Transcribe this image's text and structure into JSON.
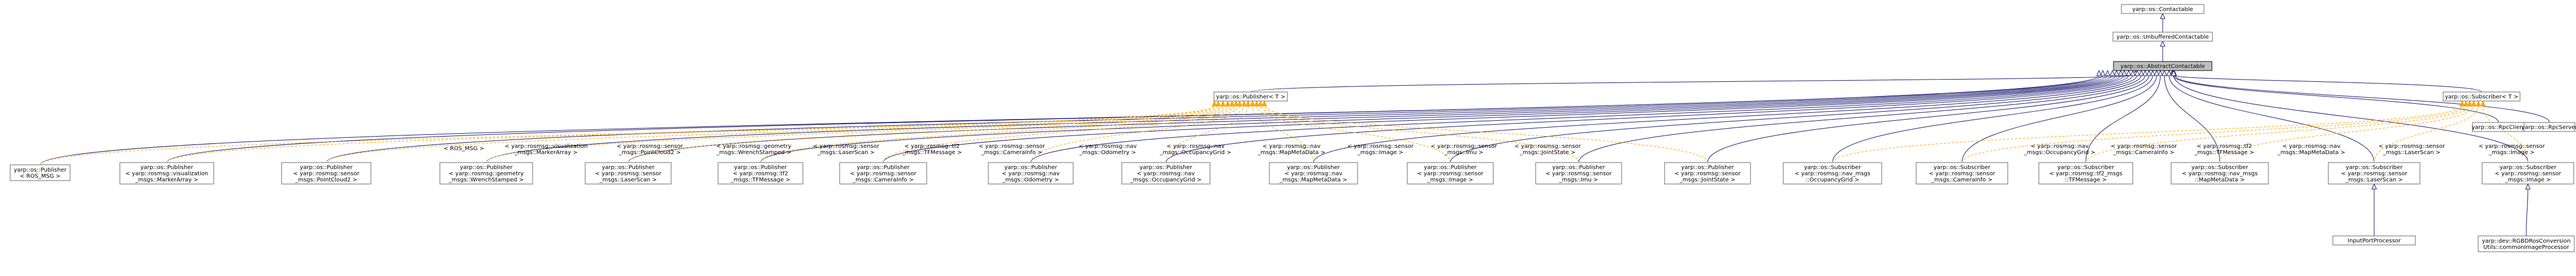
{
  "nodes": [
    {
      "id": "contactable",
      "lines": [
        "yarp::os::Contactable"
      ]
    },
    {
      "id": "unbuffered",
      "lines": [
        "yarp::os::UnbufferedContactable"
      ]
    },
    {
      "id": "abstract",
      "lines": [
        "yarp::os::AbstractContactable"
      ]
    },
    {
      "id": "publisher_t",
      "lines": [
        "yarp::os::Publisher< T >"
      ]
    },
    {
      "id": "subscriber_t",
      "lines": [
        "yarp::os::Subscriber< T >"
      ]
    },
    {
      "id": "rpcclient",
      "lines": [
        "yarp::os::RpcClient"
      ]
    },
    {
      "id": "rpcserver",
      "lines": [
        "yarp::os::RpcServer"
      ]
    },
    {
      "id": "pub_ros_msg",
      "lines": [
        "yarp::os::Publisher",
        "< ROS_MSG >"
      ]
    },
    {
      "id": "pub_marker",
      "lines": [
        "yarp::os::Publisher",
        "< yarp::rosmsg::visualization",
        "_msgs::MarkerArray >"
      ]
    },
    {
      "id": "pub_pointcloud",
      "lines": [
        "yarp::os::Publisher",
        "< yarp::rosmsg::sensor",
        "_msgs::PointCloud2 >"
      ]
    },
    {
      "id": "pub_wrench",
      "lines": [
        "yarp::os::Publisher",
        "< yarp::rosmsg::geometry",
        "_msgs::WrenchStamped >"
      ]
    },
    {
      "id": "pub_laserscan",
      "lines": [
        "yarp::os::Publisher",
        "< yarp::rosmsg::sensor",
        "_msgs::LaserScan >"
      ]
    },
    {
      "id": "pub_tf",
      "lines": [
        "yarp::os::Publisher",
        "< yarp::rosmsg::tf2",
        "_msgs::TFMessage >"
      ]
    },
    {
      "id": "pub_camerainfo",
      "lines": [
        "yarp::os::Publisher",
        "< yarp::rosmsg::sensor",
        "_msgs::CameraInfo >"
      ]
    },
    {
      "id": "pub_odometry",
      "lines": [
        "yarp::os::Publisher",
        "< yarp::rosmsg::nav",
        "_msgs::Odometry >"
      ]
    },
    {
      "id": "pub_occgrid",
      "lines": [
        "yarp::os::Publisher",
        "< yarp::rosmsg::nav",
        "_msgs::OccupancyGrid >"
      ]
    },
    {
      "id": "pub_mapmeta",
      "lines": [
        "yarp::os::Publisher",
        "< yarp::rosmsg::nav",
        "_msgs::MapMetaData >"
      ]
    },
    {
      "id": "pub_image",
      "lines": [
        "yarp::os::Publisher",
        "< yarp::rosmsg::sensor",
        "_msgs::Image >"
      ]
    },
    {
      "id": "pub_imu",
      "lines": [
        "yarp::os::Publisher",
        "< yarp::rosmsg::sensor",
        "_msgs::Imu >"
      ]
    },
    {
      "id": "pub_jointstate",
      "lines": [
        "yarp::os::Publisher",
        "< yarp::rosmsg::sensor",
        "_msgs::JointState >"
      ]
    },
    {
      "id": "sub_occgrid",
      "lines": [
        "yarp::os::Subscriber",
        "< yarp::rosmsg::nav_msgs",
        "::OccupancyGrid >"
      ]
    },
    {
      "id": "sub_camerainfo",
      "lines": [
        "yarp::os::Subscriber",
        "< yarp::rosmsg::sensor",
        "_msgs::CameraInfo >"
      ]
    },
    {
      "id": "sub_tf",
      "lines": [
        "yarp::os::Subscriber",
        "< yarp::rosmsg::tf2_msgs",
        "::TFMessage >"
      ]
    },
    {
      "id": "sub_mapmeta",
      "lines": [
        "yarp::os::Subscriber",
        "< yarp::rosmsg::nav_msgs",
        "::MapMetaData >"
      ]
    },
    {
      "id": "sub_laserscan",
      "lines": [
        "yarp::os::Subscriber",
        "< yarp::rosmsg::sensor",
        "_msgs::LaserScan >"
      ]
    },
    {
      "id": "sub_image",
      "lines": [
        "yarp::os::Subscriber",
        "< yarp::rosmsg::sensor",
        "_msgs::Image >"
      ]
    },
    {
      "id": "inputportproc",
      "lines": [
        "InputPortProcessor"
      ]
    },
    {
      "id": "rgbdros",
      "lines": [
        "yarp::dev::RGBDRosConversion",
        "Utils::commonImageProcessor"
      ]
    }
  ],
  "edges": [
    {
      "from": "unbuffered",
      "to": "contactable",
      "kind": "inherit",
      "label": []
    },
    {
      "from": "abstract",
      "to": "unbuffered",
      "kind": "inherit",
      "label": []
    },
    {
      "from": "publisher_t",
      "to": "abstract",
      "kind": "inherit",
      "label": []
    },
    {
      "from": "subscriber_t",
      "to": "abstract",
      "kind": "inherit",
      "label": []
    },
    {
      "from": "rpcclient",
      "to": "abstract",
      "kind": "inherit",
      "label": []
    },
    {
      "from": "rpcserver",
      "to": "abstract",
      "kind": "inherit",
      "label": []
    },
    {
      "from": "pub_ros_msg",
      "to": "abstract",
      "kind": "inherit",
      "label": []
    },
    {
      "from": "pub_marker",
      "to": "abstract",
      "kind": "inherit",
      "label": []
    },
    {
      "from": "pub_pointcloud",
      "to": "abstract",
      "kind": "inherit",
      "label": []
    },
    {
      "from": "pub_wrench",
      "to": "abstract",
      "kind": "inherit",
      "label": []
    },
    {
      "from": "pub_laserscan",
      "to": "abstract",
      "kind": "inherit",
      "label": []
    },
    {
      "from": "pub_tf",
      "to": "abstract",
      "kind": "inherit",
      "label": []
    },
    {
      "from": "pub_camerainfo",
      "to": "abstract",
      "kind": "inherit",
      "label": []
    },
    {
      "from": "pub_odometry",
      "to": "abstract",
      "kind": "inherit",
      "label": []
    },
    {
      "from": "pub_occgrid",
      "to": "abstract",
      "kind": "inherit",
      "label": []
    },
    {
      "from": "pub_mapmeta",
      "to": "abstract",
      "kind": "inherit",
      "label": []
    },
    {
      "from": "pub_image",
      "to": "abstract",
      "kind": "inherit",
      "label": []
    },
    {
      "from": "pub_imu",
      "to": "abstract",
      "kind": "inherit",
      "label": []
    },
    {
      "from": "pub_jointstate",
      "to": "abstract",
      "kind": "inherit",
      "label": []
    },
    {
      "from": "sub_occgrid",
      "to": "abstract",
      "kind": "inherit",
      "label": []
    },
    {
      "from": "sub_camerainfo",
      "to": "abstract",
      "kind": "inherit",
      "label": []
    },
    {
      "from": "sub_tf",
      "to": "abstract",
      "kind": "inherit",
      "label": []
    },
    {
      "from": "sub_mapmeta",
      "to": "abstract",
      "kind": "inherit",
      "label": []
    },
    {
      "from": "sub_laserscan",
      "to": "abstract",
      "kind": "inherit",
      "label": []
    },
    {
      "from": "sub_image",
      "to": "abstract",
      "kind": "inherit",
      "label": []
    },
    {
      "from": "pub_ros_msg",
      "to": "publisher_t",
      "kind": "template",
      "label": [
        "< ROS_MSG >"
      ]
    },
    {
      "from": "pub_marker",
      "to": "publisher_t",
      "kind": "template",
      "label": [
        "< yarp::rosmsg::visualization",
        "_msgs::MarkerArray >"
      ]
    },
    {
      "from": "pub_pointcloud",
      "to": "publisher_t",
      "kind": "template",
      "label": [
        "< yarp::rosmsg::sensor",
        "_msgs::PointCloud2 >"
      ]
    },
    {
      "from": "pub_wrench",
      "to": "publisher_t",
      "kind": "template",
      "label": [
        "< yarp::rosmsg::geometry",
        "_msgs::WrenchStamped >"
      ]
    },
    {
      "from": "pub_laserscan",
      "to": "publisher_t",
      "kind": "template",
      "label": [
        "< yarp::rosmsg::sensor",
        "_msgs::LaserScan >"
      ]
    },
    {
      "from": "pub_tf",
      "to": "publisher_t",
      "kind": "template",
      "label": [
        "< yarp::rosmsg::tf2",
        "_msgs::TFMessage >"
      ]
    },
    {
      "from": "pub_camerainfo",
      "to": "publisher_t",
      "kind": "template",
      "label": [
        "< yarp::rosmsg::sensor",
        "_msgs::CameraInfo >"
      ]
    },
    {
      "from": "pub_odometry",
      "to": "publisher_t",
      "kind": "template",
      "label": [
        "< yarp::rosmsg::nav",
        "_msgs::Odometry >"
      ]
    },
    {
      "from": "pub_occgrid",
      "to": "publisher_t",
      "kind": "template",
      "label": [
        "< yarp::rosmsg::nav",
        "_msgs::OccupancyGrid >"
      ]
    },
    {
      "from": "pub_mapmeta",
      "to": "publisher_t",
      "kind": "template",
      "label": [
        "< yarp::rosmsg::nav",
        "_msgs::MapMetaData >"
      ]
    },
    {
      "from": "pub_image",
      "to": "publisher_t",
      "kind": "template",
      "label": [
        "< yarp::rosmsg::sensor",
        "_msgs::Image >"
      ]
    },
    {
      "from": "pub_imu",
      "to": "publisher_t",
      "kind": "template",
      "label": [
        "< yarp::rosmsg::sensor",
        "_msgs::Imu >"
      ]
    },
    {
      "from": "pub_jointstate",
      "to": "publisher_t",
      "kind": "template",
      "label": [
        "< yarp::rosmsg::sensor",
        "_msgs::JointState >"
      ]
    },
    {
      "from": "sub_occgrid",
      "to": "subscriber_t",
      "kind": "template",
      "label": [
        "< yarp::rosmsg::nav",
        "_msgs::OccupancyGrid >"
      ]
    },
    {
      "from": "sub_camerainfo",
      "to": "subscriber_t",
      "kind": "template",
      "label": [
        "< yarp::rosmsg::sensor",
        "_msgs::CameraInfo >"
      ]
    },
    {
      "from": "sub_tf",
      "to": "subscriber_t",
      "kind": "template",
      "label": [
        "< yarp::rosmsg::tf2",
        "_msgs::TFMessage >"
      ]
    },
    {
      "from": "sub_mapmeta",
      "to": "subscriber_t",
      "kind": "template",
      "label": [
        "< yarp::rosmsg::nav",
        "_msgs::MapMetaData >"
      ]
    },
    {
      "from": "sub_laserscan",
      "to": "subscriber_t",
      "kind": "template",
      "label": [
        "< yarp::rosmsg::sensor",
        "_msgs::LaserScan >"
      ]
    },
    {
      "from": "sub_image",
      "to": "subscriber_t",
      "kind": "template",
      "label": [
        "< yarp::rosmsg::sensor",
        "_msgs::Image >"
      ]
    },
    {
      "from": "inputportproc",
      "to": "sub_laserscan",
      "kind": "inherit",
      "label": []
    },
    {
      "from": "rgbdros",
      "to": "sub_image",
      "kind": "inherit",
      "label": []
    }
  ],
  "colors": {
    "inherit_edge": "#191970",
    "template_edge": "#ffa500",
    "focus_node_fill": "#bfbfbf",
    "node_border": "#666666"
  }
}
